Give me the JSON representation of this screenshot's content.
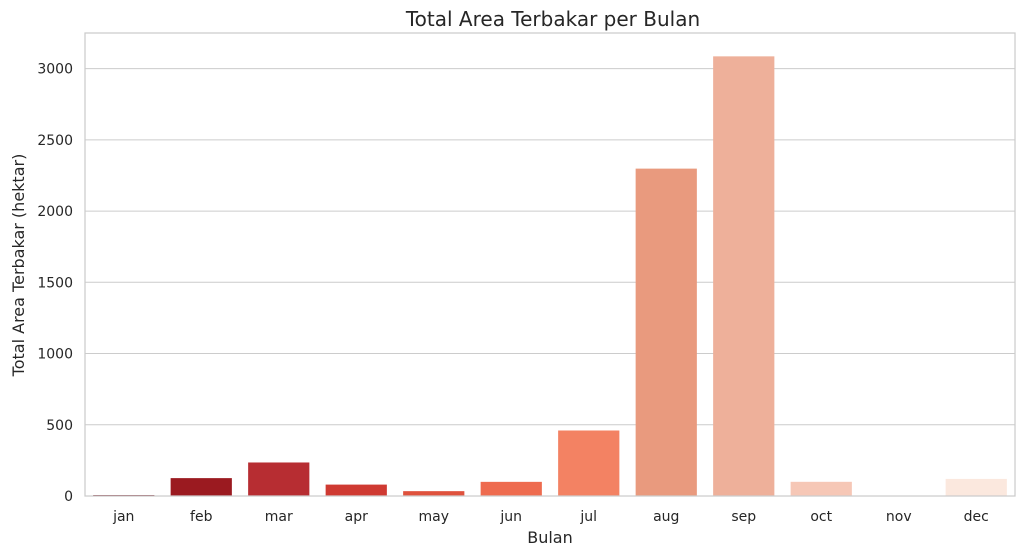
{
  "chart_data": {
    "type": "bar",
    "title": "Total Area Terbakar per Bulan",
    "xlabel": "Bulan",
    "ylabel": "Total Area Terbakar (hektar)",
    "categories": [
      "jan",
      "feb",
      "mar",
      "apr",
      "may",
      "jun",
      "jul",
      "aug",
      "sep",
      "oct",
      "nov",
      "dec"
    ],
    "values": [
      6.3,
      125.5,
      235.3,
      80.0,
      34.0,
      99.3,
      459.8,
      2297.99,
      3086.13,
      99.57,
      0,
      119.97
    ],
    "colors": [
      "#67000d",
      "#9b1a20",
      "#b72d32",
      "#cf3a32",
      "#df523d",
      "#ee6b4f",
      "#f38263",
      "#e99a7e",
      "#eeb09a",
      "#f6c7b6",
      "#fbdfd2",
      "#fbe8de"
    ],
    "yticks": [
      0,
      500,
      1000,
      1500,
      2000,
      2500,
      3000
    ],
    "ylim": [
      0,
      3250
    ],
    "grid": true,
    "grid_axis": "y",
    "legend": "none"
  }
}
